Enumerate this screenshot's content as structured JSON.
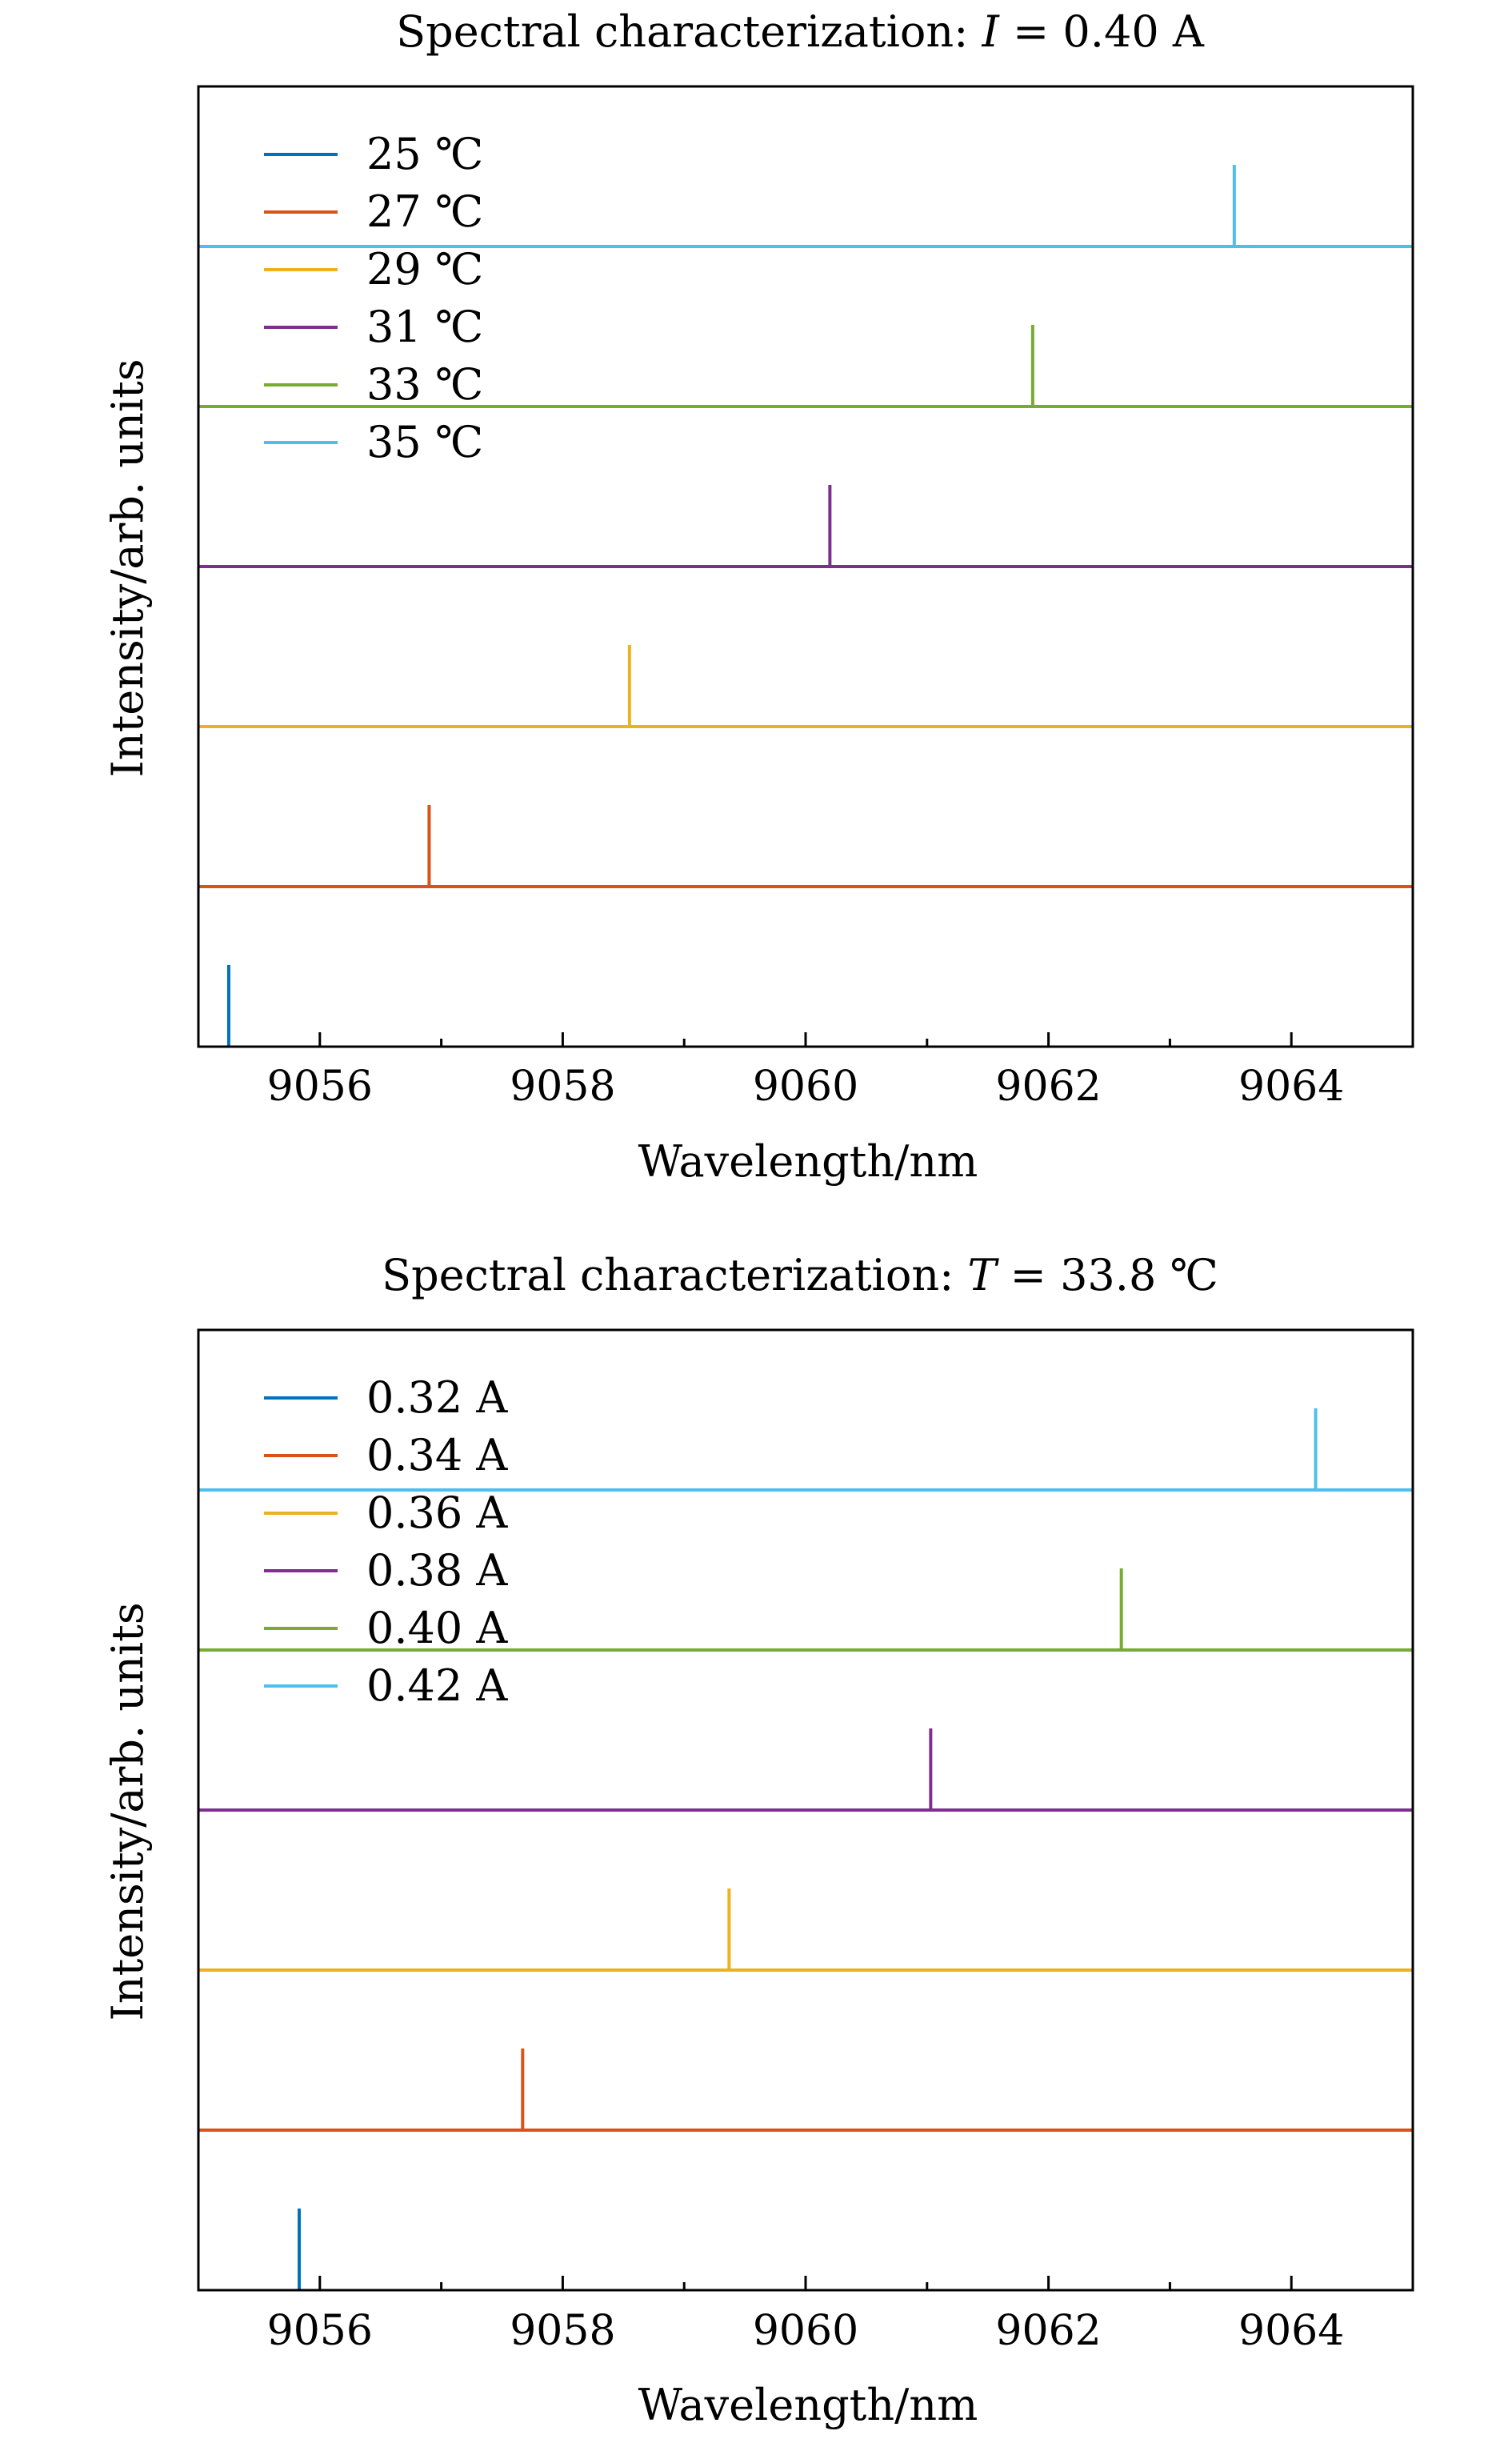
{
  "colors": [
    "#0072BD",
    "#D95319",
    "#EDB120",
    "#7E2F8E",
    "#77AC30",
    "#4DBEEE"
  ],
  "chart_data": [
    {
      "type": "line",
      "title": "Spectral characterization: I = 0.40 A",
      "title_prefix": "Spectral characterization: ",
      "title_var": "I",
      "title_value": " = 0.40 A",
      "xlabel": "Wavelength/nm",
      "ylabel": "Intensity/arb. units",
      "xlim": [
        9055,
        9065
      ],
      "xticks": [
        9056,
        9058,
        9060,
        9062,
        9064
      ],
      "minor_xticks": [
        9055,
        9057,
        9059,
        9061,
        9063,
        9065
      ],
      "y_ticks_shown": false,
      "legend_position": "top-left",
      "series": [
        {
          "name": "25 ℃",
          "peak_wavelength": 9055.25,
          "offset": 0
        },
        {
          "name": "27 ℃",
          "peak_wavelength": 9056.9,
          "offset": 1
        },
        {
          "name": "29 ℃",
          "peak_wavelength": 9058.55,
          "offset": 2
        },
        {
          "name": "31 ℃",
          "peak_wavelength": 9060.2,
          "offset": 3
        },
        {
          "name": "33 ℃",
          "peak_wavelength": 9061.87,
          "offset": 4
        },
        {
          "name": "35 ℃",
          "peak_wavelength": 9063.53,
          "offset": 5
        }
      ]
    },
    {
      "type": "line",
      "title": "Spectral characterization: T = 33.8 ℃",
      "title_prefix": "Spectral characterization: ",
      "title_var": "T",
      "title_value": " = 33.8 ℃",
      "xlabel": "Wavelength/nm",
      "ylabel": "Intensity/arb. units",
      "xlim": [
        9055,
        9065
      ],
      "xticks": [
        9056,
        9058,
        9060,
        9062,
        9064
      ],
      "minor_xticks": [
        9055,
        9057,
        9059,
        9061,
        9063,
        9065
      ],
      "y_ticks_shown": false,
      "legend_position": "top-left",
      "series": [
        {
          "name": "0.32 A",
          "peak_wavelength": 9055.83,
          "offset": 0
        },
        {
          "name": "0.34 A",
          "peak_wavelength": 9057.67,
          "offset": 1
        },
        {
          "name": "0.36 A",
          "peak_wavelength": 9059.37,
          "offset": 2
        },
        {
          "name": "0.38 A",
          "peak_wavelength": 9061.03,
          "offset": 3
        },
        {
          "name": "0.40 A",
          "peak_wavelength": 9062.6,
          "offset": 4
        },
        {
          "name": "0.42 A",
          "peak_wavelength": 9064.2,
          "offset": 5
        }
      ]
    }
  ]
}
